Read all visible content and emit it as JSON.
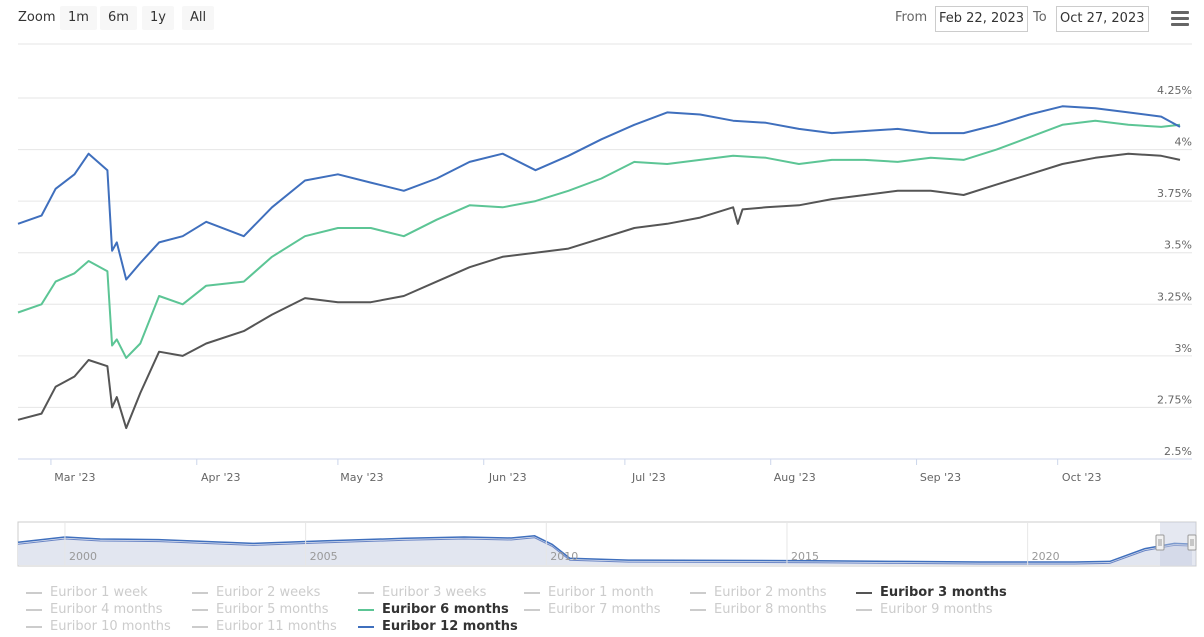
{
  "toolbar": {
    "zoom_label": "Zoom",
    "zoom_buttons": [
      "1m",
      "6m",
      "1y",
      "All"
    ],
    "from_label": "From",
    "from_value": "Feb 22, 2023",
    "to_label": "To",
    "to_value": "Oct 27, 2023",
    "menu_icon": "hamburger-menu-icon"
  },
  "colors": {
    "euribor_3m": "#555555",
    "euribor_6m": "#5cc595",
    "euribor_12m": "#3f6fbd",
    "inactive": "#cccccc",
    "grid": "#e6e6e6",
    "navigator_fill": "#e2e6f0",
    "navigator_window": "#c5cde0"
  },
  "chart_data": {
    "type": "line",
    "x_range": [
      "2023-02-22",
      "2023-10-27"
    ],
    "ylim": [
      2.5,
      4.25
    ],
    "y_ticks": [
      "2.5%",
      "2.75%",
      "3%",
      "3.25%",
      "3.5%",
      "3.75%",
      "4%",
      "4.25%"
    ],
    "x_ticks": [
      "Mar '23",
      "Apr '23",
      "May '23",
      "Jun '23",
      "Jul '23",
      "Aug '23",
      "Sep '23",
      "Oct '23"
    ],
    "grid": true,
    "series": [
      {
        "name": "Euribor 3 months",
        "points": [
          [
            "2023-02-22",
            2.69
          ],
          [
            "2023-02-27",
            2.72
          ],
          [
            "2023-03-02",
            2.85
          ],
          [
            "2023-03-06",
            2.9
          ],
          [
            "2023-03-09",
            2.98
          ],
          [
            "2023-03-13",
            2.95
          ],
          [
            "2023-03-14",
            2.75
          ],
          [
            "2023-03-15",
            2.8
          ],
          [
            "2023-03-17",
            2.65
          ],
          [
            "2023-03-20",
            2.82
          ],
          [
            "2023-03-24",
            3.02
          ],
          [
            "2023-03-29",
            3.0
          ],
          [
            "2023-04-03",
            3.06
          ],
          [
            "2023-04-11",
            3.12
          ],
          [
            "2023-04-17",
            3.2
          ],
          [
            "2023-04-24",
            3.28
          ],
          [
            "2023-05-01",
            3.26
          ],
          [
            "2023-05-08",
            3.26
          ],
          [
            "2023-05-15",
            3.29
          ],
          [
            "2023-05-22",
            3.36
          ],
          [
            "2023-05-29",
            3.43
          ],
          [
            "2023-06-05",
            3.48
          ],
          [
            "2023-06-12",
            3.5
          ],
          [
            "2023-06-19",
            3.52
          ],
          [
            "2023-06-26",
            3.57
          ],
          [
            "2023-07-03",
            3.62
          ],
          [
            "2023-07-10",
            3.64
          ],
          [
            "2023-07-17",
            3.67
          ],
          [
            "2023-07-24",
            3.72
          ],
          [
            "2023-07-25",
            3.64
          ],
          [
            "2023-07-26",
            3.71
          ],
          [
            "2023-07-31",
            3.72
          ],
          [
            "2023-08-07",
            3.73
          ],
          [
            "2023-08-14",
            3.76
          ],
          [
            "2023-08-21",
            3.78
          ],
          [
            "2023-08-28",
            3.8
          ],
          [
            "2023-09-04",
            3.8
          ],
          [
            "2023-09-11",
            3.78
          ],
          [
            "2023-09-18",
            3.83
          ],
          [
            "2023-09-25",
            3.88
          ],
          [
            "2023-10-02",
            3.93
          ],
          [
            "2023-10-09",
            3.96
          ],
          [
            "2023-10-16",
            3.98
          ],
          [
            "2023-10-23",
            3.97
          ],
          [
            "2023-10-27",
            3.95
          ]
        ]
      },
      {
        "name": "Euribor 6 months",
        "points": [
          [
            "2023-02-22",
            3.21
          ],
          [
            "2023-02-27",
            3.25
          ],
          [
            "2023-03-02",
            3.36
          ],
          [
            "2023-03-06",
            3.4
          ],
          [
            "2023-03-09",
            3.46
          ],
          [
            "2023-03-13",
            3.41
          ],
          [
            "2023-03-14",
            3.05
          ],
          [
            "2023-03-15",
            3.08
          ],
          [
            "2023-03-17",
            2.99
          ],
          [
            "2023-03-20",
            3.06
          ],
          [
            "2023-03-24",
            3.29
          ],
          [
            "2023-03-29",
            3.25
          ],
          [
            "2023-04-03",
            3.34
          ],
          [
            "2023-04-11",
            3.36
          ],
          [
            "2023-04-17",
            3.48
          ],
          [
            "2023-04-24",
            3.58
          ],
          [
            "2023-05-01",
            3.62
          ],
          [
            "2023-05-08",
            3.62
          ],
          [
            "2023-05-15",
            3.58
          ],
          [
            "2023-05-22",
            3.66
          ],
          [
            "2023-05-29",
            3.73
          ],
          [
            "2023-06-05",
            3.72
          ],
          [
            "2023-06-12",
            3.75
          ],
          [
            "2023-06-19",
            3.8
          ],
          [
            "2023-06-26",
            3.86
          ],
          [
            "2023-07-03",
            3.94
          ],
          [
            "2023-07-10",
            3.93
          ],
          [
            "2023-07-17",
            3.95
          ],
          [
            "2023-07-24",
            3.97
          ],
          [
            "2023-07-31",
            3.96
          ],
          [
            "2023-08-07",
            3.93
          ],
          [
            "2023-08-14",
            3.95
          ],
          [
            "2023-08-21",
            3.95
          ],
          [
            "2023-08-28",
            3.94
          ],
          [
            "2023-09-04",
            3.96
          ],
          [
            "2023-09-11",
            3.95
          ],
          [
            "2023-09-18",
            4.0
          ],
          [
            "2023-09-25",
            4.06
          ],
          [
            "2023-10-02",
            4.12
          ],
          [
            "2023-10-09",
            4.14
          ],
          [
            "2023-10-16",
            4.12
          ],
          [
            "2023-10-23",
            4.11
          ],
          [
            "2023-10-27",
            4.12
          ]
        ]
      },
      {
        "name": "Euribor 12 months",
        "points": [
          [
            "2023-02-22",
            3.64
          ],
          [
            "2023-02-27",
            3.68
          ],
          [
            "2023-03-02",
            3.81
          ],
          [
            "2023-03-06",
            3.88
          ],
          [
            "2023-03-09",
            3.98
          ],
          [
            "2023-03-13",
            3.9
          ],
          [
            "2023-03-14",
            3.51
          ],
          [
            "2023-03-15",
            3.55
          ],
          [
            "2023-03-17",
            3.37
          ],
          [
            "2023-03-20",
            3.45
          ],
          [
            "2023-03-24",
            3.55
          ],
          [
            "2023-03-29",
            3.58
          ],
          [
            "2023-04-03",
            3.65
          ],
          [
            "2023-04-11",
            3.58
          ],
          [
            "2023-04-17",
            3.72
          ],
          [
            "2023-04-24",
            3.85
          ],
          [
            "2023-05-01",
            3.88
          ],
          [
            "2023-05-08",
            3.84
          ],
          [
            "2023-05-15",
            3.8
          ],
          [
            "2023-05-22",
            3.86
          ],
          [
            "2023-05-29",
            3.94
          ],
          [
            "2023-06-05",
            3.98
          ],
          [
            "2023-06-12",
            3.9
          ],
          [
            "2023-06-19",
            3.97
          ],
          [
            "2023-06-26",
            4.05
          ],
          [
            "2023-07-03",
            4.12
          ],
          [
            "2023-07-10",
            4.18
          ],
          [
            "2023-07-17",
            4.17
          ],
          [
            "2023-07-24",
            4.14
          ],
          [
            "2023-07-31",
            4.13
          ],
          [
            "2023-08-07",
            4.1
          ],
          [
            "2023-08-14",
            4.08
          ],
          [
            "2023-08-21",
            4.09
          ],
          [
            "2023-08-28",
            4.1
          ],
          [
            "2023-09-04",
            4.08
          ],
          [
            "2023-09-11",
            4.08
          ],
          [
            "2023-09-18",
            4.12
          ],
          [
            "2023-09-25",
            4.17
          ],
          [
            "2023-10-02",
            4.21
          ],
          [
            "2023-10-09",
            4.2
          ],
          [
            "2023-10-16",
            4.18
          ],
          [
            "2023-10-23",
            4.16
          ],
          [
            "2023-10-27",
            4.11
          ]
        ]
      }
    ],
    "navigator": {
      "x_ticks": [
        "2000",
        "2005",
        "2010",
        "2015",
        "2020"
      ]
    }
  },
  "legend": {
    "items": [
      {
        "label": "Euribor 1 week",
        "active": false
      },
      {
        "label": "Euribor 2 weeks",
        "active": false
      },
      {
        "label": "Euribor 3 weeks",
        "active": false
      },
      {
        "label": "Euribor 1 month",
        "active": false
      },
      {
        "label": "Euribor 2 months",
        "active": false
      },
      {
        "label": "Euribor 3 months",
        "active": true
      },
      {
        "label": "Euribor 4 months",
        "active": false
      },
      {
        "label": "Euribor 5 months",
        "active": false
      },
      {
        "label": "Euribor 6 months",
        "active": true
      },
      {
        "label": "Euribor 7 months",
        "active": false
      },
      {
        "label": "Euribor 8 months",
        "active": false
      },
      {
        "label": "Euribor 9 months",
        "active": false
      },
      {
        "label": "Euribor 10 months",
        "active": false
      },
      {
        "label": "Euribor 11 months",
        "active": false
      },
      {
        "label": "Euribor 12 months",
        "active": true
      }
    ]
  }
}
